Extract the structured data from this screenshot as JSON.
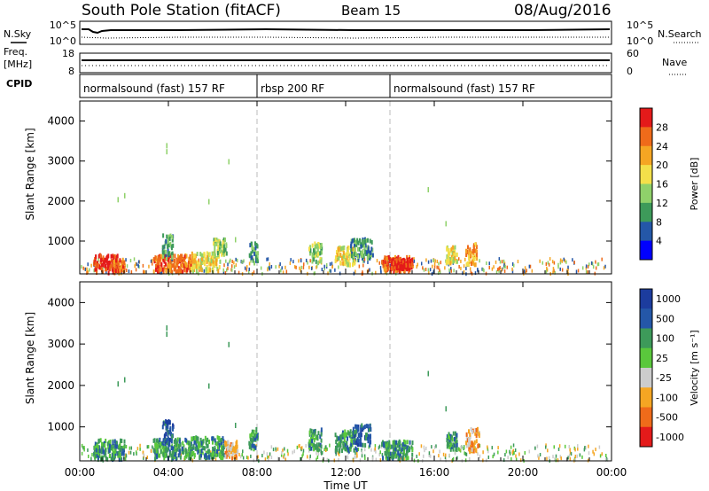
{
  "header": {
    "title": "South Pole Station (fitACF)",
    "beam": "Beam 15",
    "date": "08/Aug/2016"
  },
  "side_labels": {
    "nsky": "N.Sky",
    "freq": "Freq.",
    "freq_unit": "[MHz]",
    "cpid": "CPID",
    "nsearch": "N.Search",
    "nave": "Nave"
  },
  "noise_panel": {
    "yticks_left": [
      "10^5",
      "10^0"
    ],
    "yticks_right": [
      "10^5",
      "10^0"
    ]
  },
  "freq_panel": {
    "yticks_left": [
      "18",
      "8"
    ],
    "yticks_right": [
      "60",
      "0"
    ]
  },
  "cpid_segments": [
    {
      "label": "normalsound (fast) 157 RF",
      "start_hour": 0
    },
    {
      "label": "rbsp 200 RF",
      "start_hour": 8
    },
    {
      "label": "normalsound (fast) 157 RF",
      "start_hour": 14
    }
  ],
  "colors": {
    "power": [
      "#0000ff",
      "#2457a8",
      "#3d9a5a",
      "#8fd16a",
      "#f3e04a",
      "#f5a623",
      "#ef6b1a",
      "#e41a1a"
    ],
    "velocity": [
      "#e41a1a",
      "#ef6b1a",
      "#f5a623",
      "#cccccc",
      "#5ac83c",
      "#3d9a5a",
      "#2457a8",
      "#1c3c9e"
    ],
    "guide": "#bbbbbb"
  },
  "chart_data": [
    {
      "type": "heatmap",
      "name": "power",
      "ylabel": "Slant Range [km]",
      "yticks": [
        1000,
        2000,
        3000,
        4000
      ],
      "ylim": [
        180,
        4500
      ],
      "xlim": [
        0,
        24
      ],
      "colorbar": {
        "label": "Power [dB]",
        "ticks": [
          "4",
          "8",
          "12",
          "16",
          "20",
          "24",
          "28"
        ],
        "range": [
          0,
          32
        ]
      },
      "blobs": [
        {
          "t0": 0.6,
          "t1": 1.7,
          "r0": 250,
          "r1": 700,
          "level": 7
        },
        {
          "t0": 1.5,
          "t1": 2.0,
          "r0": 300,
          "r1": 600,
          "level": 6
        },
        {
          "t0": 3.3,
          "t1": 5.0,
          "r0": 280,
          "r1": 700,
          "level": 6
        },
        {
          "t0": 3.7,
          "t1": 4.2,
          "r0": 600,
          "r1": 1200,
          "level": 2
        },
        {
          "t0": 5.0,
          "t1": 6.3,
          "r0": 300,
          "r1": 750,
          "level": 4
        },
        {
          "t0": 6.0,
          "t1": 6.6,
          "r0": 700,
          "r1": 1100,
          "level": 3
        },
        {
          "t0": 7.6,
          "t1": 8.0,
          "r0": 500,
          "r1": 1000,
          "level": 2
        },
        {
          "t0": 10.3,
          "t1": 10.9,
          "r0": 500,
          "r1": 1000,
          "level": 3
        },
        {
          "t0": 11.5,
          "t1": 12.4,
          "r0": 450,
          "r1": 900,
          "level": 4
        },
        {
          "t0": 12.2,
          "t1": 13.2,
          "r0": 600,
          "r1": 1100,
          "level": 2
        },
        {
          "t0": 13.6,
          "t1": 15.0,
          "r0": 280,
          "r1": 650,
          "level": 6
        },
        {
          "t0": 14.0,
          "t1": 14.9,
          "r0": 350,
          "r1": 600,
          "level": 7
        },
        {
          "t0": 16.5,
          "t1": 17.0,
          "r0": 500,
          "r1": 900,
          "level": 4
        },
        {
          "t0": 17.4,
          "t1": 17.9,
          "r0": 450,
          "r1": 1000,
          "level": 5
        }
      ]
    },
    {
      "type": "heatmap",
      "name": "velocity",
      "ylabel": "Slant Range [km]",
      "yticks": [
        1000,
        2000,
        3000,
        4000
      ],
      "ylim": [
        180,
        4500
      ],
      "xlim": [
        0,
        24
      ],
      "xticks": [
        "00:00",
        "04:00",
        "08:00",
        "12:00",
        "16:00",
        "20:00",
        "00:00"
      ],
      "xlabel": "Time UT",
      "colorbar": {
        "label": "Velocity [m s⁻¹]",
        "ticks": [
          "1000",
          "500",
          "100",
          "25",
          "-25",
          "-100",
          "-500",
          "-1000"
        ]
      },
      "blobs": [
        {
          "t0": 0.6,
          "t1": 2.0,
          "r0": 250,
          "r1": 750,
          "level": 5
        },
        {
          "t0": 3.3,
          "t1": 5.0,
          "r0": 280,
          "r1": 750,
          "level": 5
        },
        {
          "t0": 3.7,
          "t1": 4.2,
          "r0": 600,
          "r1": 1200,
          "level": 6
        },
        {
          "t0": 5.0,
          "t1": 6.5,
          "r0": 300,
          "r1": 800,
          "level": 5
        },
        {
          "t0": 6.5,
          "t1": 7.1,
          "r0": 300,
          "r1": 700,
          "level": 2
        },
        {
          "t0": 7.6,
          "t1": 8.0,
          "r0": 500,
          "r1": 1000,
          "level": 5
        },
        {
          "t0": 10.3,
          "t1": 10.9,
          "r0": 500,
          "r1": 1000,
          "level": 5
        },
        {
          "t0": 11.5,
          "t1": 12.5,
          "r0": 450,
          "r1": 950,
          "level": 5
        },
        {
          "t0": 12.3,
          "t1": 13.1,
          "r0": 600,
          "r1": 1100,
          "level": 6
        },
        {
          "t0": 13.6,
          "t1": 15.0,
          "r0": 280,
          "r1": 700,
          "level": 5
        },
        {
          "t0": 16.5,
          "t1": 17.0,
          "r0": 500,
          "r1": 900,
          "level": 5
        },
        {
          "t0": 17.4,
          "t1": 18.0,
          "r0": 450,
          "r1": 1000,
          "level": 2
        }
      ]
    }
  ]
}
